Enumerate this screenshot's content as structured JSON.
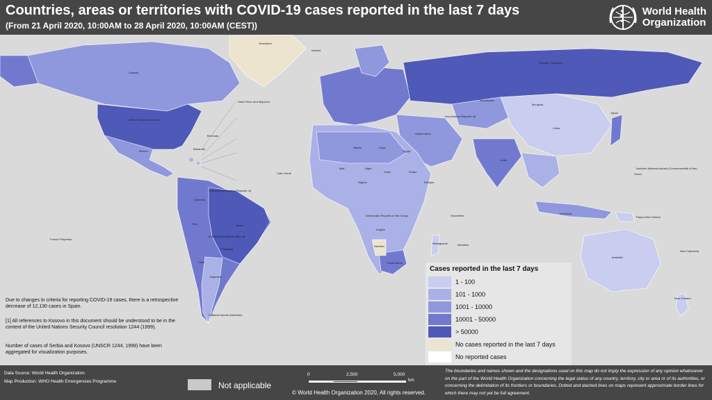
{
  "header": {
    "title": "Countries, areas or territories with COVID-19 cases reported in the last 7 days",
    "subtitle": "(From 21 April 2020, 10:00AM  to 28 April 2020, 10:00AM (CEST))",
    "logo_text_1": "World Health",
    "logo_text_2": "Organization"
  },
  "legend": {
    "title": "Cases reported in the last 7 days",
    "items": [
      {
        "label": "1 - 100",
        "color": "#c9cdef"
      },
      {
        "label": "101 - 1000",
        "color": "#a9b1e6"
      },
      {
        "label": "1001 - 10000",
        "color": "#8f98dd"
      },
      {
        "label": "10001 - 50000",
        "color": "#7179cf"
      },
      {
        "label": "> 50000",
        "color": "#4f59b8"
      },
      {
        "label": "No cases reported in the last 7 days",
        "color": "#ece4cf"
      },
      {
        "label": "No reported cases",
        "color": "#ffffff"
      }
    ]
  },
  "notes": {
    "spain": "Due to changes in criteria for reporting COVID-19 cases, there is a retrospective decrease of 12,130 cases in Spain.",
    "kosovo": "[1] All references to Kosovo in this document should be understood to be in the context of the United Nations Security Council resolution 1244 (1999).",
    "serbia": "Number of cases of Serbia and Kosovo (UNSCR 1244, 1999)  have been aggregated for visualization purposes."
  },
  "footer": {
    "data_source": "Data Source: World Health Organization",
    "map_production": "Map Production: WHO Health Emergencies Programme",
    "not_applicable": "Not applicable",
    "scale": [
      "0",
      "2,500",
      "5,000",
      "km"
    ],
    "copyright": "© World Health Organization  2020, All rights reserved.",
    "disclaimer": "The boundaries and names shown and the designations used on this map do not imply the expression of any opinion whatsoever on the part of the World Health Organization concerning the legal status of any country, territory, city or area or of its authorities, or concerning the delimitation of its frontiers or boundaries. Dotted and dashed lines on maps represent approximate border lines for which there may not yet be full agreement."
  },
  "map_labels": {
    "greenland": "Greenland",
    "iceland": "Iceland",
    "canada": "Canada",
    "usa": "United States of America",
    "russia": "Russian Federation",
    "mongolia": "Mongolia",
    "china": "China",
    "kazakhstan": "Kazakhstan",
    "india": "India",
    "brazil": "Brazil",
    "argentina": "Argentina",
    "peru": "Peru",
    "colombia": "Colombia",
    "mexico": "Mexico",
    "algeria": "Algeria",
    "libya": "Libya",
    "egypt": "Egypt",
    "sudan": "Sudan",
    "chad": "Chad",
    "niger": "Niger",
    "mali": "Mali",
    "nigeria": "Nigeria",
    "ethiopia": "Ethiopia",
    "drc": "Democratic Republic of the Congo",
    "angola": "Angola",
    "namibia": "Namibia",
    "south_africa": "South Africa",
    "madagascar": "Madagascar",
    "saudi": "Saudi Arabia",
    "iran": "Iran (Islamic Republic of)",
    "australia": "Australia",
    "new_zealand": "New Zealand",
    "indonesia": "Indonesia",
    "png": "Papua New Guinea",
    "japan": "Japan",
    "french_polynesia": "French Polynesia",
    "falkland": "Falkland Islands (Malvinas)",
    "bolivia": "Bolivia (Plurinational State of)",
    "paraguay": "Paraguay",
    "chile": "Chile",
    "venezuela": "Venezuela (Bolivarian Republic of)",
    "spm": "Saint Pierre and Miquelon",
    "bermuda": "Bermuda",
    "bahamas": "Bahamas",
    "cabo_verde": "Cabo Verde",
    "nmi": "Northern Mariana Islands (Commonwealth of the)",
    "new_caledonia": "New Caledonia",
    "seychelles": "Seychelles",
    "mauritius": "Mauritius",
    "guam": "Guam"
  }
}
